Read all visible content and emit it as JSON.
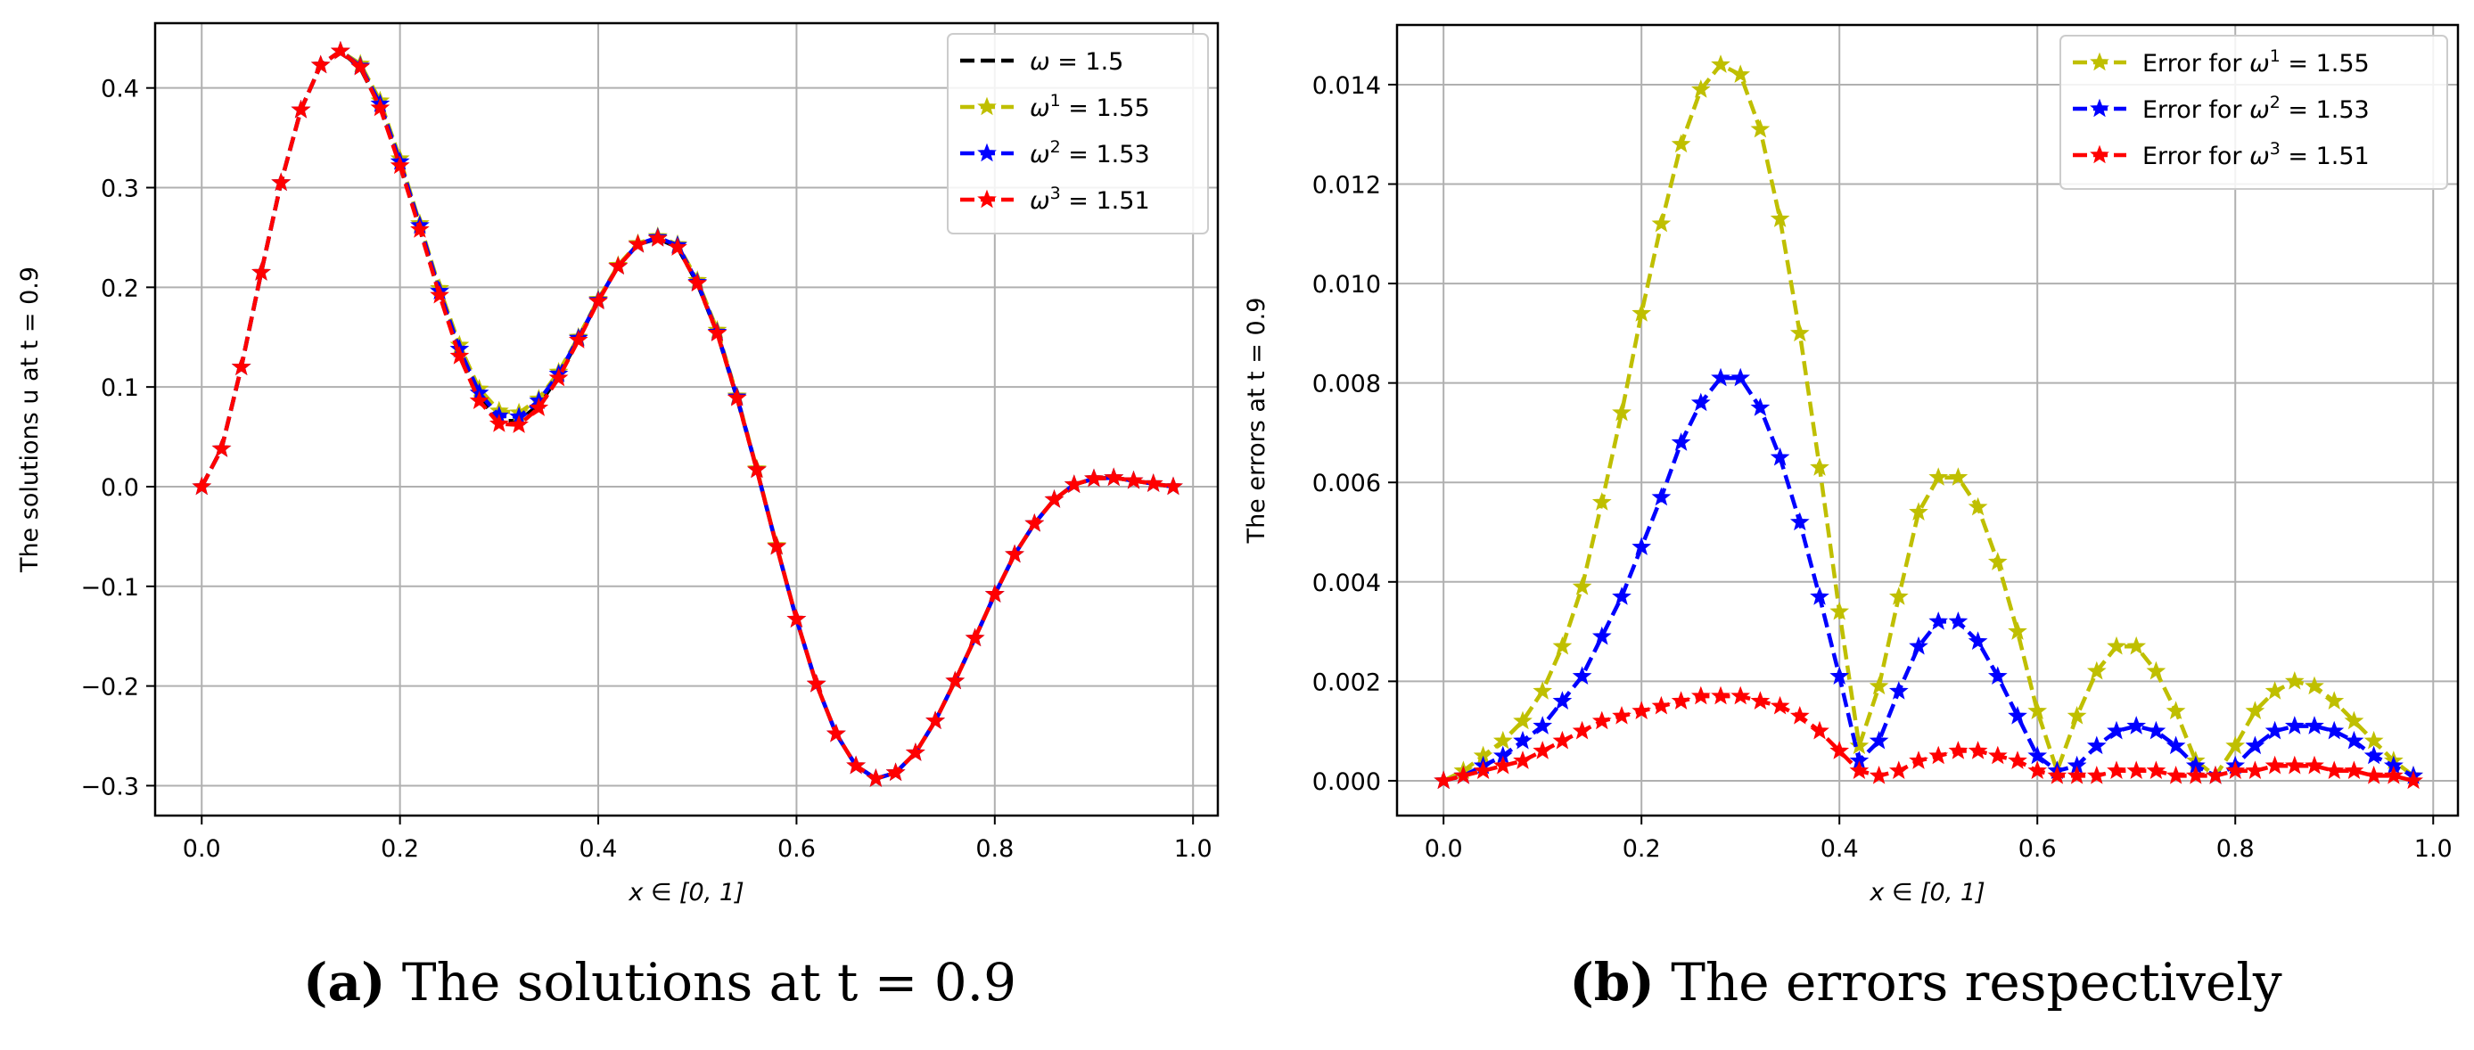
{
  "chart_data": [
    {
      "type": "line",
      "panel_label": "(a)",
      "caption": "The solutions at t = 0.9",
      "title": "",
      "xlabel": "x ∈ [0, 1]",
      "ylabel": "The solutions u at t = 0.9",
      "xlim": [
        -0.047,
        1.025
      ],
      "ylim": [
        -0.33,
        0.465
      ],
      "xticks": [
        0.0,
        0.2,
        0.4,
        0.6,
        0.8,
        1.0
      ],
      "xtick_labels": [
        "0.0",
        "0.2",
        "0.4",
        "0.6",
        "0.8",
        "1.0"
      ],
      "yticks": [
        -0.3,
        -0.2,
        -0.1,
        0.0,
        0.1,
        0.2,
        0.3,
        0.4
      ],
      "ytick_labels": [
        "−0.3",
        "−0.2",
        "−0.1",
        "0.0",
        "0.1",
        "0.2",
        "0.3",
        "0.4"
      ],
      "grid": true,
      "legend_position": "top-right",
      "x": [
        0.0,
        0.02,
        0.04,
        0.06,
        0.08,
        0.1,
        0.12,
        0.14,
        0.16,
        0.18,
        0.2,
        0.22,
        0.24,
        0.26,
        0.28,
        0.3,
        0.32,
        0.34,
        0.36,
        0.38,
        0.4,
        0.42,
        0.44,
        0.46,
        0.48,
        0.5,
        0.52,
        0.54,
        0.56,
        0.58,
        0.6,
        0.62,
        0.64,
        0.66,
        0.68,
        0.7,
        0.72,
        0.74,
        0.76,
        0.78,
        0.8,
        0.82,
        0.84,
        0.86,
        0.88,
        0.9,
        0.92,
        0.94,
        0.96,
        0.98
      ],
      "series": [
        {
          "name": "ω  = 1.5",
          "legend_symbol": "ω",
          "legend_value": "= 1.5",
          "color": "#000000",
          "marker": "none",
          "values": [
            0.0,
            0.038,
            0.12,
            0.215,
            0.305,
            0.378,
            0.423,
            0.437,
            0.42,
            0.381,
            0.323,
            0.259,
            0.193,
            0.134,
            0.089,
            0.066,
            0.066,
            0.082,
            0.111,
            0.148,
            0.187,
            0.221,
            0.243,
            0.249,
            0.24,
            0.204,
            0.154,
            0.089,
            0.017,
            -0.06,
            -0.133,
            -0.198,
            -0.248,
            -0.28,
            -0.293,
            -0.287,
            -0.267,
            -0.235,
            -0.195,
            -0.152,
            -0.108,
            -0.068,
            -0.037,
            -0.013,
            0.002,
            0.008,
            0.009,
            0.006,
            0.003,
            0.0
          ]
        },
        {
          "name": "ω¹ = 1.55",
          "legend_symbol": "ω",
          "legend_sup": "1",
          "legend_value": "= 1.55",
          "color": "#bfbf00",
          "marker": "star",
          "values": [
            0.0,
            0.038,
            0.12,
            0.215,
            0.305,
            0.378,
            0.423,
            0.437,
            0.424,
            0.387,
            0.329,
            0.264,
            0.199,
            0.142,
            0.098,
            0.076,
            0.074,
            0.088,
            0.115,
            0.15,
            0.188,
            0.222,
            0.244,
            0.251,
            0.243,
            0.207,
            0.157,
            0.091,
            0.018,
            -0.059,
            -0.133,
            -0.198,
            -0.248,
            -0.28,
            -0.293,
            -0.287,
            -0.267,
            -0.235,
            -0.195,
            -0.152,
            -0.108,
            -0.068,
            -0.037,
            -0.013,
            0.002,
            0.008,
            0.009,
            0.006,
            0.003,
            0.0
          ]
        },
        {
          "name": "ω² = 1.53",
          "legend_symbol": "ω",
          "legend_sup": "2",
          "legend_value": "= 1.53",
          "color": "#0000ff",
          "marker": "star",
          "values": [
            0.0,
            0.038,
            0.12,
            0.215,
            0.305,
            0.378,
            0.423,
            0.437,
            0.422,
            0.384,
            0.326,
            0.262,
            0.196,
            0.138,
            0.094,
            0.071,
            0.07,
            0.086,
            0.113,
            0.149,
            0.187,
            0.221,
            0.243,
            0.25,
            0.242,
            0.205,
            0.155,
            0.09,
            0.017,
            -0.06,
            -0.133,
            -0.198,
            -0.248,
            -0.28,
            -0.293,
            -0.287,
            -0.267,
            -0.235,
            -0.195,
            -0.152,
            -0.108,
            -0.068,
            -0.037,
            -0.013,
            0.002,
            0.008,
            0.009,
            0.006,
            0.003,
            0.0
          ]
        },
        {
          "name": "ω³ = 1.51",
          "legend_symbol": "ω",
          "legend_sup": "3",
          "legend_value": "= 1.51",
          "color": "#ff0000",
          "marker": "star",
          "values": [
            0.0,
            0.038,
            0.12,
            0.215,
            0.305,
            0.378,
            0.423,
            0.437,
            0.421,
            0.38,
            0.322,
            0.258,
            0.192,
            0.131,
            0.086,
            0.063,
            0.062,
            0.079,
            0.109,
            0.147,
            0.186,
            0.221,
            0.243,
            0.249,
            0.24,
            0.204,
            0.154,
            0.089,
            0.017,
            -0.06,
            -0.133,
            -0.198,
            -0.248,
            -0.28,
            -0.293,
            -0.287,
            -0.267,
            -0.235,
            -0.195,
            -0.152,
            -0.108,
            -0.068,
            -0.037,
            -0.013,
            0.002,
            0.008,
            0.009,
            0.006,
            0.003,
            0.0
          ]
        }
      ]
    },
    {
      "type": "line",
      "panel_label": "(b)",
      "caption": "The errors respectively",
      "title": "",
      "xlabel": "x ∈ [0, 1]",
      "ylabel": "The errors at t = 0.9",
      "xlim": [
        -0.047,
        1.025
      ],
      "ylim": [
        -0.0007,
        0.0152
      ],
      "xticks": [
        0.0,
        0.2,
        0.4,
        0.6,
        0.8,
        1.0
      ],
      "xtick_labels": [
        "0.0",
        "0.2",
        "0.4",
        "0.6",
        "0.8",
        "1.0"
      ],
      "yticks": [
        0.0,
        0.002,
        0.004,
        0.006,
        0.008,
        0.01,
        0.012,
        0.014
      ],
      "ytick_labels": [
        "0.000",
        "0.002",
        "0.004",
        "0.006",
        "0.008",
        "0.010",
        "0.012",
        "0.014"
      ],
      "grid": true,
      "legend_position": "top-right",
      "x": [
        0.0,
        0.02,
        0.04,
        0.06,
        0.08,
        0.1,
        0.12,
        0.14,
        0.16,
        0.18,
        0.2,
        0.22,
        0.24,
        0.26,
        0.28,
        0.3,
        0.32,
        0.34,
        0.36,
        0.38,
        0.4,
        0.42,
        0.44,
        0.46,
        0.48,
        0.5,
        0.52,
        0.54,
        0.56,
        0.58,
        0.6,
        0.62,
        0.64,
        0.66,
        0.68,
        0.7,
        0.72,
        0.74,
        0.76,
        0.78,
        0.8,
        0.82,
        0.84,
        0.86,
        0.88,
        0.9,
        0.92,
        0.94,
        0.96,
        0.98
      ],
      "series": [
        {
          "name": "Error for ω¹ = 1.55",
          "legend_prefix": "Error for ",
          "legend_symbol": "ω",
          "legend_sup": "1",
          "legend_value": "= 1.55",
          "color": "#bfbf00",
          "marker": "star",
          "values": [
            0.0,
            0.0002,
            0.0005,
            0.0008,
            0.0012,
            0.0018,
            0.0027,
            0.0039,
            0.0056,
            0.0074,
            0.0094,
            0.0112,
            0.0128,
            0.0139,
            0.0144,
            0.0142,
            0.0131,
            0.0113,
            0.009,
            0.0063,
            0.0034,
            0.0007,
            0.0019,
            0.0037,
            0.0054,
            0.0061,
            0.0061,
            0.0055,
            0.0044,
            0.003,
            0.0014,
            0.0002,
            0.0013,
            0.0022,
            0.0027,
            0.0027,
            0.0022,
            0.0014,
            0.0004,
            0.0001,
            0.0007,
            0.0014,
            0.0018,
            0.002,
            0.0019,
            0.0016,
            0.0012,
            0.0008,
            0.0004,
            0.0001
          ]
        },
        {
          "name": "Error for ω² = 1.53",
          "legend_prefix": "Error for ",
          "legend_symbol": "ω",
          "legend_sup": "2",
          "legend_value": "= 1.53",
          "color": "#0000ff",
          "marker": "star",
          "values": [
            0.0,
            0.0001,
            0.0003,
            0.0005,
            0.0008,
            0.0011,
            0.0016,
            0.0021,
            0.0029,
            0.0037,
            0.0047,
            0.0057,
            0.0068,
            0.0076,
            0.0081,
            0.0081,
            0.0075,
            0.0065,
            0.0052,
            0.0037,
            0.0021,
            0.0004,
            0.0008,
            0.0018,
            0.0027,
            0.0032,
            0.0032,
            0.0028,
            0.0021,
            0.0013,
            0.0005,
            0.0002,
            0.0003,
            0.0007,
            0.001,
            0.0011,
            0.001,
            0.0007,
            0.0003,
            0.0001,
            0.0003,
            0.0007,
            0.001,
            0.0011,
            0.0011,
            0.001,
            0.0008,
            0.0005,
            0.0003,
            0.0001
          ]
        },
        {
          "name": "Error for ω³ = 1.51",
          "legend_prefix": "Error for ",
          "legend_symbol": "ω",
          "legend_sup": "3",
          "legend_value": "= 1.51",
          "color": "#ff0000",
          "marker": "star",
          "values": [
            0.0,
            0.0001,
            0.0002,
            0.0003,
            0.0004,
            0.0006,
            0.0008,
            0.001,
            0.0012,
            0.0013,
            0.0014,
            0.0015,
            0.0016,
            0.0017,
            0.0017,
            0.0017,
            0.0016,
            0.0015,
            0.0013,
            0.001,
            0.0006,
            0.0002,
            0.0001,
            0.0002,
            0.0004,
            0.0005,
            0.0006,
            0.0006,
            0.0005,
            0.0004,
            0.0002,
            0.0001,
            0.0001,
            0.0001,
            0.0002,
            0.0002,
            0.0002,
            0.0001,
            0.0001,
            0.0001,
            0.0002,
            0.0002,
            0.0003,
            0.0003,
            0.0003,
            0.0002,
            0.0002,
            0.0001,
            0.0001,
            0.0
          ]
        }
      ]
    }
  ]
}
